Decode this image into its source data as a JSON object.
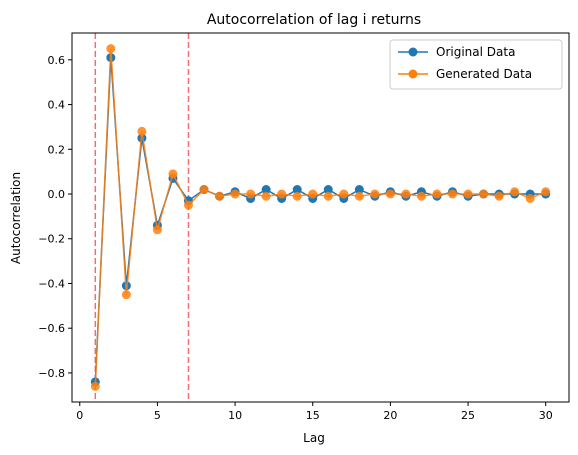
{
  "chart_data": {
    "type": "line",
    "title": "Autocorrelation of lag i returns",
    "xlabel": "Lag",
    "ylabel": "Autocorrelation",
    "xlim": [
      -0.5,
      31.5
    ],
    "ylim": [
      -0.93,
      0.72
    ],
    "xticks": [
      0,
      5,
      10,
      15,
      20,
      25,
      30
    ],
    "xtick_labels": [
      "0",
      "5",
      "10",
      "15",
      "20",
      "25",
      "30"
    ],
    "yticks": [
      -0.8,
      -0.6,
      -0.4,
      -0.2,
      0.0,
      0.2,
      0.4,
      0.6
    ],
    "ytick_labels": [
      "−0.8",
      "−0.6",
      "−0.4",
      "−0.2",
      "0.0",
      "0.2",
      "0.4",
      "0.6"
    ],
    "grid": false,
    "legend_position": "top-right",
    "vlines": [
      {
        "x": 1,
        "color": "#f07070",
        "style": "dashed"
      },
      {
        "x": 7,
        "color": "#f07070",
        "style": "dashed"
      }
    ],
    "x": [
      1,
      2,
      3,
      4,
      5,
      6,
      7,
      8,
      9,
      10,
      11,
      12,
      13,
      14,
      15,
      16,
      17,
      18,
      19,
      20,
      21,
      22,
      23,
      24,
      25,
      26,
      27,
      28,
      29,
      30
    ],
    "series": [
      {
        "name": "Original Data",
        "color": "#1f77b4",
        "marker": "circle",
        "values": [
          -0.84,
          0.61,
          -0.41,
          0.25,
          -0.14,
          0.07,
          -0.03,
          0.02,
          -0.01,
          0.01,
          -0.02,
          0.02,
          -0.02,
          0.02,
          -0.02,
          0.02,
          -0.02,
          0.02,
          -0.01,
          0.01,
          -0.01,
          0.01,
          -0.01,
          0.01,
          -0.01,
          0.0,
          0.0,
          0.0,
          0.0,
          0.0
        ]
      },
      {
        "name": "Generated Data",
        "color": "#ff7f0e",
        "marker": "circle",
        "values": [
          -0.86,
          0.65,
          -0.45,
          0.28,
          -0.16,
          0.09,
          -0.05,
          0.02,
          -0.01,
          0.0,
          0.0,
          -0.01,
          0.0,
          -0.01,
          0.0,
          -0.01,
          0.0,
          -0.01,
          0.0,
          0.0,
          0.0,
          -0.01,
          0.0,
          0.0,
          0.0,
          0.0,
          -0.01,
          0.01,
          -0.02,
          0.01
        ]
      }
    ]
  }
}
